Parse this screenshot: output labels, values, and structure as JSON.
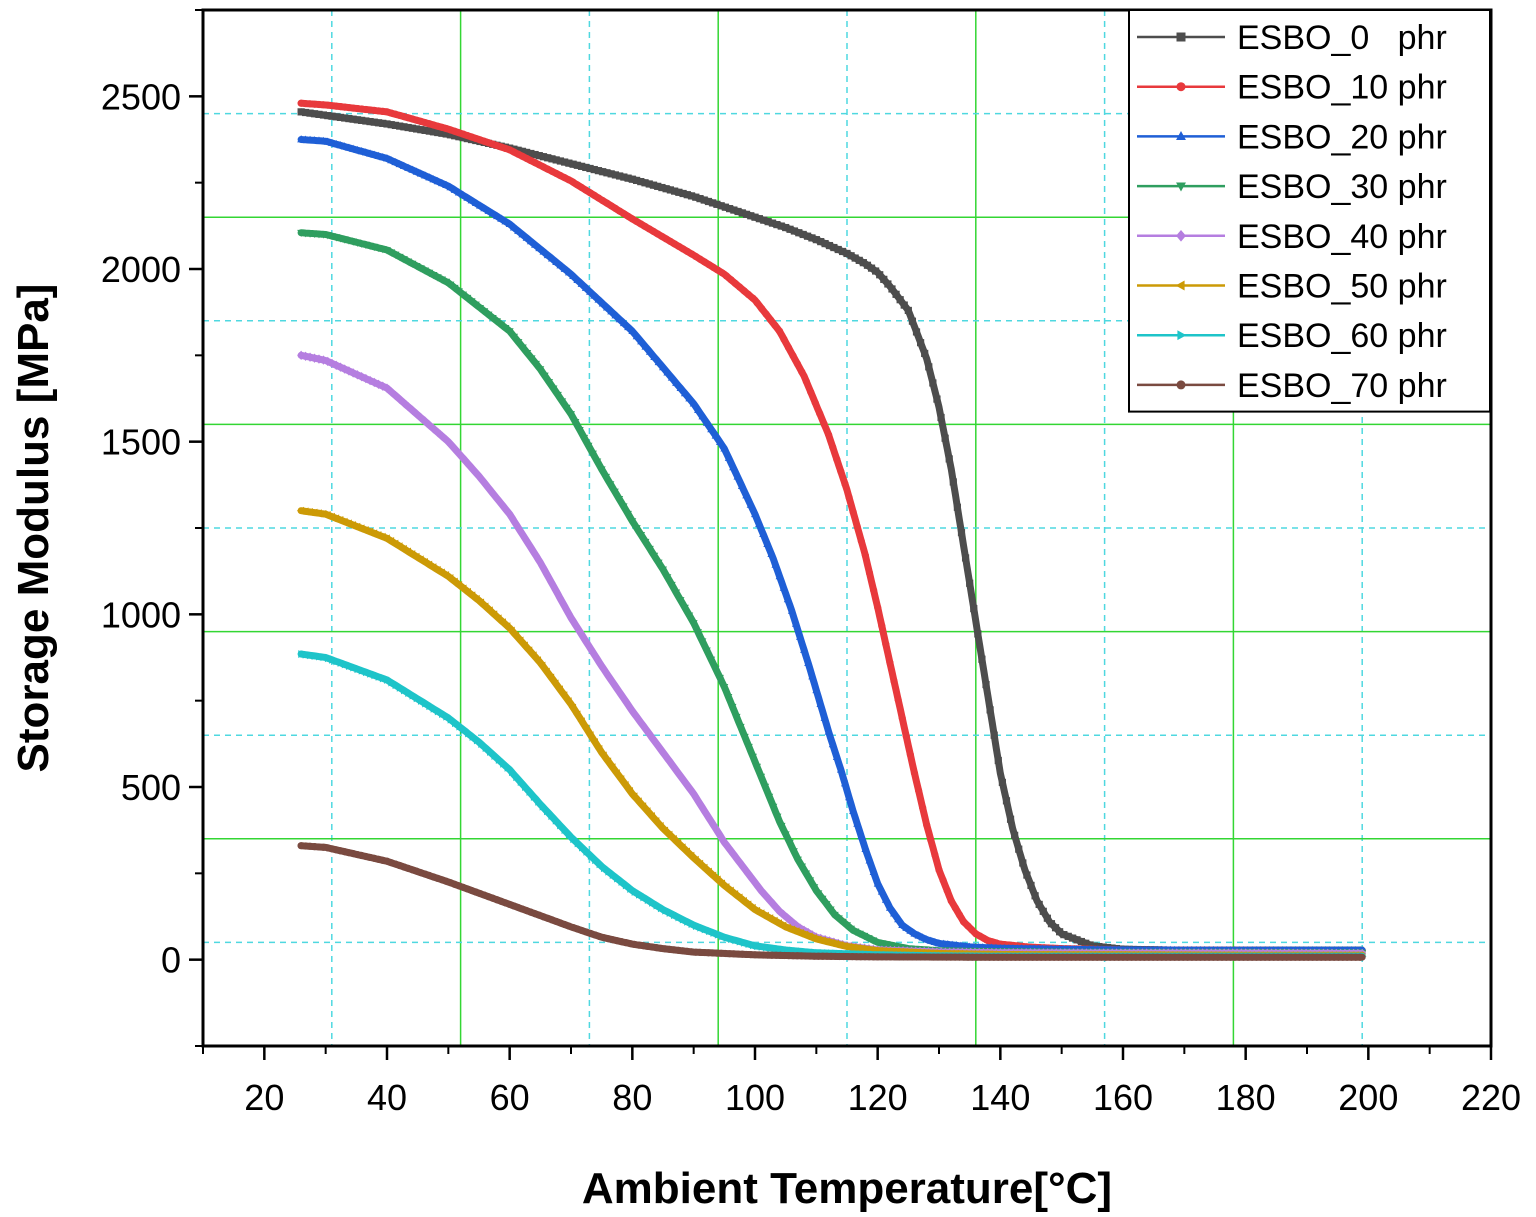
{
  "chart_data": {
    "type": "scatter",
    "xlabel": "Ambient Temperature[°C]",
    "ylabel": "Storage Modulus [MPa]",
    "xlim": [
      10,
      220
    ],
    "ylim": [
      -250,
      2750
    ],
    "xticks": [
      20,
      40,
      60,
      80,
      100,
      120,
      140,
      160,
      180,
      200,
      220
    ],
    "yticks": [
      0,
      500,
      1000,
      1500,
      2000,
      2500
    ],
    "grid": true,
    "legend_position": "top-right",
    "series": [
      {
        "name": "ESBO_0   phr",
        "color": "#4d4d4d",
        "marker": "square",
        "x": [
          26,
          30,
          40,
          50,
          60,
          70,
          80,
          90,
          100,
          105,
          110,
          115,
          118,
          120,
          122,
          125,
          128,
          130,
          132,
          134,
          136,
          138,
          140,
          142,
          144,
          146,
          148,
          150,
          155,
          160,
          170,
          180,
          199
        ],
        "y": [
          2455,
          2445,
          2420,
          2390,
          2350,
          2305,
          2260,
          2210,
          2150,
          2120,
          2085,
          2045,
          2015,
          1990,
          1950,
          1880,
          1740,
          1600,
          1420,
          1200,
          980,
          760,
          540,
          380,
          260,
          170,
          110,
          75,
          40,
          30,
          27,
          27,
          27
        ]
      },
      {
        "name": "ESBO_10 phr",
        "color": "#e8393c",
        "marker": "circle",
        "x": [
          26,
          30,
          40,
          50,
          60,
          70,
          80,
          90,
          95,
          100,
          104,
          108,
          112,
          115,
          118,
          120,
          122,
          124,
          126,
          128,
          130,
          132,
          134,
          136,
          138,
          140,
          145,
          150,
          160,
          180,
          199
        ],
        "y": [
          2480,
          2475,
          2455,
          2405,
          2345,
          2255,
          2145,
          2040,
          1985,
          1910,
          1820,
          1690,
          1520,
          1360,
          1170,
          1020,
          860,
          700,
          540,
          390,
          260,
          170,
          110,
          75,
          55,
          45,
          36,
          32,
          28,
          27,
          26
        ]
      },
      {
        "name": "ESBO_20 phr",
        "color": "#1f5fd6",
        "marker": "triangle-up",
        "x": [
          26,
          30,
          40,
          50,
          60,
          70,
          80,
          85,
          90,
          95,
          100,
          103,
          106,
          109,
          112,
          114,
          116,
          118,
          120,
          122,
          124,
          126,
          128,
          130,
          135,
          140,
          150,
          160,
          180,
          199
        ],
        "y": [
          2375,
          2370,
          2320,
          2240,
          2130,
          1985,
          1820,
          1715,
          1610,
          1480,
          1290,
          1160,
          1010,
          840,
          660,
          550,
          430,
          320,
          220,
          150,
          100,
          75,
          58,
          47,
          37,
          33,
          30,
          28,
          27,
          27
        ]
      },
      {
        "name": "ESBO_30 phr",
        "color": "#2f9e5f",
        "marker": "triangle-down",
        "x": [
          26,
          30,
          40,
          50,
          60,
          65,
          70,
          75,
          80,
          85,
          90,
          95,
          98,
          101,
          104,
          107,
          110,
          113,
          116,
          120,
          125,
          130,
          140,
          150,
          160,
          180,
          199
        ],
        "y": [
          2105,
          2100,
          2055,
          1960,
          1820,
          1710,
          1580,
          1420,
          1270,
          1130,
          975,
          790,
          660,
          530,
          400,
          290,
          200,
          130,
          85,
          50,
          32,
          26,
          23,
          22,
          21,
          21,
          20
        ]
      },
      {
        "name": "ESBO_40 phr",
        "color": "#b57ee0",
        "marker": "diamond",
        "x": [
          26,
          30,
          40,
          50,
          55,
          60,
          65,
          70,
          75,
          80,
          85,
          90,
          95,
          98,
          101,
          104,
          107,
          110,
          115,
          120,
          130,
          140,
          160,
          180,
          199
        ],
        "y": [
          1750,
          1735,
          1655,
          1500,
          1400,
          1290,
          1150,
          990,
          850,
          720,
          600,
          480,
          340,
          270,
          200,
          140,
          95,
          65,
          40,
          28,
          22,
          20,
          19,
          19,
          18
        ]
      },
      {
        "name": "ESBO_50 phr",
        "color": "#cc9a06",
        "marker": "triangle-left",
        "x": [
          26,
          30,
          40,
          50,
          55,
          60,
          65,
          70,
          75,
          80,
          85,
          90,
          95,
          100,
          105,
          110,
          115,
          120,
          130,
          140,
          160,
          180,
          199
        ],
        "y": [
          1300,
          1290,
          1220,
          1110,
          1040,
          960,
          860,
          740,
          600,
          480,
          380,
          295,
          215,
          145,
          95,
          60,
          38,
          26,
          18,
          15,
          14,
          13,
          13
        ]
      },
      {
        "name": "ESBO_60 phr",
        "color": "#1ec4c9",
        "marker": "triangle-right",
        "x": [
          26,
          30,
          40,
          50,
          55,
          60,
          65,
          70,
          75,
          80,
          85,
          90,
          95,
          100,
          105,
          110,
          120,
          130,
          140,
          160,
          180,
          199
        ],
        "y": [
          885,
          875,
          810,
          700,
          630,
          550,
          450,
          355,
          270,
          200,
          145,
          100,
          65,
          40,
          28,
          20,
          14,
          11,
          10,
          10,
          10,
          10
        ]
      },
      {
        "name": "ESBO_70 phr",
        "color": "#7a4a40",
        "marker": "circle",
        "x": [
          26,
          30,
          40,
          50,
          60,
          70,
          75,
          80,
          85,
          90,
          100,
          110,
          120,
          140,
          160,
          180,
          199
        ],
        "y": [
          330,
          325,
          285,
          225,
          160,
          95,
          65,
          45,
          32,
          22,
          14,
          10,
          8,
          7,
          7,
          7,
          7
        ]
      }
    ]
  }
}
